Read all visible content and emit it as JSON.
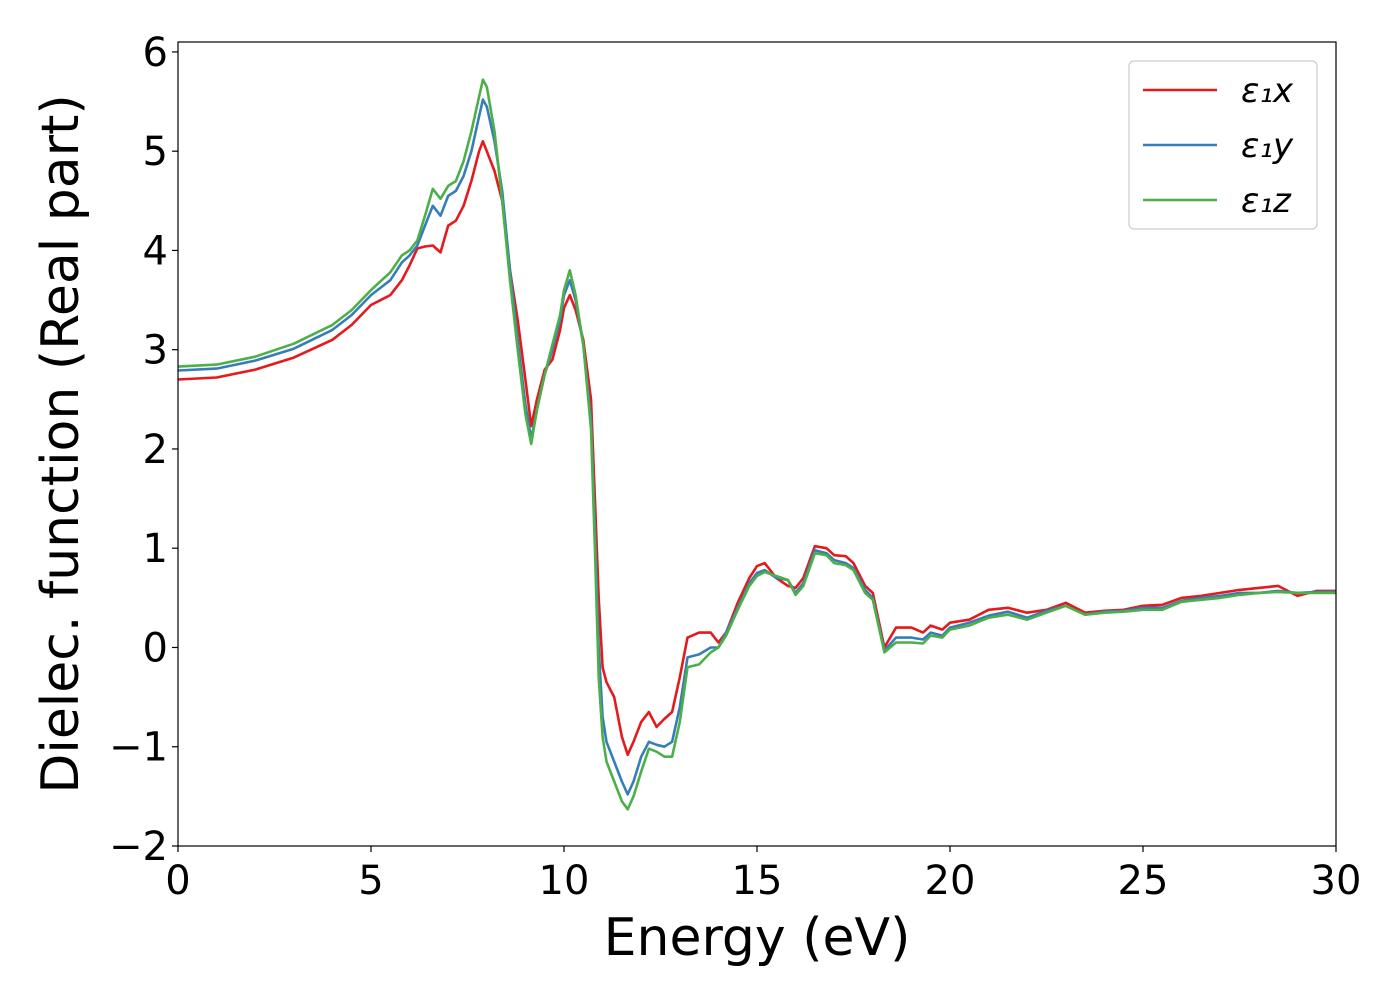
{
  "chart_data": {
    "type": "line",
    "title": "",
    "xlabel": "Energy (eV)",
    "ylabel": "Dielec. function (Real part)",
    "xlim": [
      0,
      30
    ],
    "ylim": [
      -2,
      6.1
    ],
    "x_ticks": [
      "0",
      "5",
      "10",
      "15",
      "20",
      "25",
      "30"
    ],
    "y_ticks": [
      "−2",
      "−1",
      "0",
      "1",
      "2",
      "3",
      "4",
      "5",
      "6"
    ],
    "grid": false,
    "legend_position": "top-right",
    "series": [
      {
        "name": "ε₁x",
        "color": "#e41a1c",
        "x": [
          0,
          1,
          2,
          3,
          4,
          4.5,
          5,
          5.5,
          5.8,
          6.0,
          6.2,
          6.4,
          6.6,
          6.8,
          7.0,
          7.2,
          7.4,
          7.6,
          7.8,
          7.9,
          8.0,
          8.2,
          8.4,
          8.6,
          8.8,
          9.0,
          9.15,
          9.3,
          9.5,
          9.7,
          9.9,
          10.0,
          10.15,
          10.3,
          10.5,
          10.7,
          10.8,
          10.9,
          11.0,
          11.1,
          11.3,
          11.5,
          11.65,
          11.8,
          12.0,
          12.2,
          12.4,
          12.6,
          12.8,
          13.0,
          13.2,
          13.5,
          13.8,
          14.0,
          14.2,
          14.5,
          14.8,
          15.0,
          15.2,
          15.5,
          15.8,
          16.0,
          16.2,
          16.5,
          16.8,
          17.0,
          17.3,
          17.5,
          17.8,
          18.0,
          18.3,
          18.6,
          19.0,
          19.3,
          19.5,
          19.8,
          20.0,
          20.5,
          21.0,
          21.5,
          22.0,
          22.5,
          23.0,
          23.5,
          24.0,
          24.5,
          25.0,
          25.5,
          26.0,
          26.5,
          27.0,
          27.5,
          28.0,
          28.5,
          29.0,
          29.5,
          30.0
        ],
        "values": [
          2.7,
          2.72,
          2.8,
          2.92,
          3.1,
          3.25,
          3.45,
          3.55,
          3.7,
          3.85,
          4.02,
          4.04,
          4.05,
          3.98,
          4.25,
          4.3,
          4.45,
          4.7,
          5.0,
          5.1,
          5.0,
          4.8,
          4.5,
          3.8,
          3.3,
          2.7,
          2.23,
          2.5,
          2.8,
          2.9,
          3.2,
          3.42,
          3.55,
          3.4,
          3.1,
          2.5,
          1.5,
          0.5,
          -0.2,
          -0.35,
          -0.5,
          -0.9,
          -1.08,
          -0.95,
          -0.75,
          -0.65,
          -0.8,
          -0.72,
          -0.65,
          -0.3,
          0.1,
          0.15,
          0.15,
          0.05,
          0.15,
          0.45,
          0.7,
          0.82,
          0.85,
          0.7,
          0.62,
          0.6,
          0.7,
          1.02,
          1.0,
          0.93,
          0.92,
          0.85,
          0.62,
          0.55,
          0.0,
          0.2,
          0.2,
          0.15,
          0.22,
          0.18,
          0.25,
          0.28,
          0.38,
          0.4,
          0.35,
          0.38,
          0.45,
          0.35,
          0.37,
          0.38,
          0.42,
          0.43,
          0.5,
          0.52,
          0.55,
          0.58,
          0.6,
          0.62,
          0.52,
          0.57,
          0.57
        ]
      },
      {
        "name": "ε₁y",
        "color": "#377eb8",
        "x": [
          0,
          1,
          2,
          3,
          4,
          4.5,
          5,
          5.5,
          5.8,
          6.0,
          6.2,
          6.4,
          6.6,
          6.8,
          7.0,
          7.2,
          7.4,
          7.6,
          7.8,
          7.9,
          8.0,
          8.2,
          8.4,
          8.6,
          8.8,
          9.0,
          9.15,
          9.3,
          9.5,
          9.7,
          9.9,
          10.0,
          10.15,
          10.3,
          10.5,
          10.7,
          10.8,
          10.9,
          11.0,
          11.1,
          11.3,
          11.5,
          11.65,
          11.8,
          12.0,
          12.2,
          12.4,
          12.6,
          12.8,
          13.0,
          13.2,
          13.5,
          13.8,
          14.0,
          14.2,
          14.5,
          14.8,
          15.0,
          15.2,
          15.5,
          15.8,
          16.0,
          16.2,
          16.5,
          16.8,
          17.0,
          17.3,
          17.5,
          17.8,
          18.0,
          18.3,
          18.6,
          19.0,
          19.3,
          19.5,
          19.8,
          20.0,
          20.5,
          21.0,
          21.5,
          22.0,
          22.5,
          23.0,
          23.5,
          24.0,
          24.5,
          25.0,
          25.5,
          26.0,
          26.5,
          27.0,
          27.5,
          28.0,
          28.5,
          29.0,
          29.5,
          30.0
        ],
        "values": [
          2.79,
          2.81,
          2.89,
          3.01,
          3.2,
          3.35,
          3.55,
          3.7,
          3.88,
          3.95,
          4.05,
          4.25,
          4.45,
          4.35,
          4.55,
          4.6,
          4.75,
          5.0,
          5.35,
          5.52,
          5.45,
          5.1,
          4.6,
          3.8,
          3.1,
          2.45,
          2.1,
          2.4,
          2.75,
          3.0,
          3.3,
          3.55,
          3.7,
          3.5,
          3.05,
          2.3,
          1.2,
          0.0,
          -0.7,
          -0.95,
          -1.15,
          -1.35,
          -1.48,
          -1.35,
          -1.1,
          -0.95,
          -0.98,
          -1.0,
          -0.95,
          -0.6,
          -0.1,
          -0.07,
          0.0,
          0.0,
          0.15,
          0.4,
          0.65,
          0.75,
          0.78,
          0.7,
          0.68,
          0.55,
          0.65,
          0.98,
          0.95,
          0.88,
          0.85,
          0.8,
          0.58,
          0.5,
          -0.03,
          0.1,
          0.1,
          0.08,
          0.15,
          0.12,
          0.2,
          0.25,
          0.32,
          0.36,
          0.3,
          0.37,
          0.42,
          0.33,
          0.36,
          0.37,
          0.4,
          0.4,
          0.47,
          0.5,
          0.52,
          0.55,
          0.55,
          0.57,
          0.55,
          0.56,
          0.56
        ]
      },
      {
        "name": "ε₁z",
        "color": "#4daf4a",
        "x": [
          0,
          1,
          2,
          3,
          4,
          4.5,
          5,
          5.5,
          5.8,
          6.0,
          6.2,
          6.4,
          6.6,
          6.8,
          7.0,
          7.2,
          7.4,
          7.6,
          7.8,
          7.9,
          8.0,
          8.2,
          8.4,
          8.6,
          8.8,
          9.0,
          9.15,
          9.3,
          9.5,
          9.7,
          9.9,
          10.0,
          10.15,
          10.3,
          10.5,
          10.7,
          10.8,
          10.9,
          11.0,
          11.1,
          11.3,
          11.5,
          11.65,
          11.8,
          12.0,
          12.2,
          12.4,
          12.6,
          12.8,
          13.0,
          13.2,
          13.5,
          13.8,
          14.0,
          14.2,
          14.5,
          14.8,
          15.0,
          15.2,
          15.5,
          15.8,
          16.0,
          16.2,
          16.5,
          16.8,
          17.0,
          17.3,
          17.5,
          17.8,
          18.0,
          18.3,
          18.6,
          19.0,
          19.3,
          19.5,
          19.8,
          20.0,
          20.5,
          21.0,
          21.5,
          22.0,
          22.5,
          23.0,
          23.5,
          24.0,
          24.5,
          25.0,
          25.5,
          26.0,
          26.5,
          27.0,
          27.5,
          28.0,
          28.5,
          29.0,
          29.5,
          30.0
        ],
        "values": [
          2.83,
          2.85,
          2.93,
          3.06,
          3.25,
          3.4,
          3.6,
          3.78,
          3.95,
          4.0,
          4.1,
          4.35,
          4.62,
          4.52,
          4.65,
          4.7,
          4.9,
          5.2,
          5.55,
          5.72,
          5.65,
          5.2,
          4.5,
          3.7,
          3.0,
          2.35,
          2.05,
          2.4,
          2.75,
          3.05,
          3.35,
          3.6,
          3.8,
          3.55,
          3.05,
          2.2,
          1.0,
          -0.3,
          -0.9,
          -1.15,
          -1.35,
          -1.55,
          -1.63,
          -1.5,
          -1.25,
          -1.02,
          -1.05,
          -1.1,
          -1.1,
          -0.75,
          -0.2,
          -0.17,
          -0.05,
          0.0,
          0.12,
          0.38,
          0.62,
          0.72,
          0.76,
          0.72,
          0.68,
          0.53,
          0.62,
          0.95,
          0.93,
          0.85,
          0.83,
          0.78,
          0.55,
          0.48,
          -0.05,
          0.05,
          0.05,
          0.04,
          0.12,
          0.1,
          0.18,
          0.22,
          0.3,
          0.33,
          0.28,
          0.35,
          0.42,
          0.33,
          0.35,
          0.36,
          0.38,
          0.38,
          0.46,
          0.48,
          0.5,
          0.53,
          0.55,
          0.56,
          0.55,
          0.55,
          0.55
        ]
      }
    ]
  }
}
